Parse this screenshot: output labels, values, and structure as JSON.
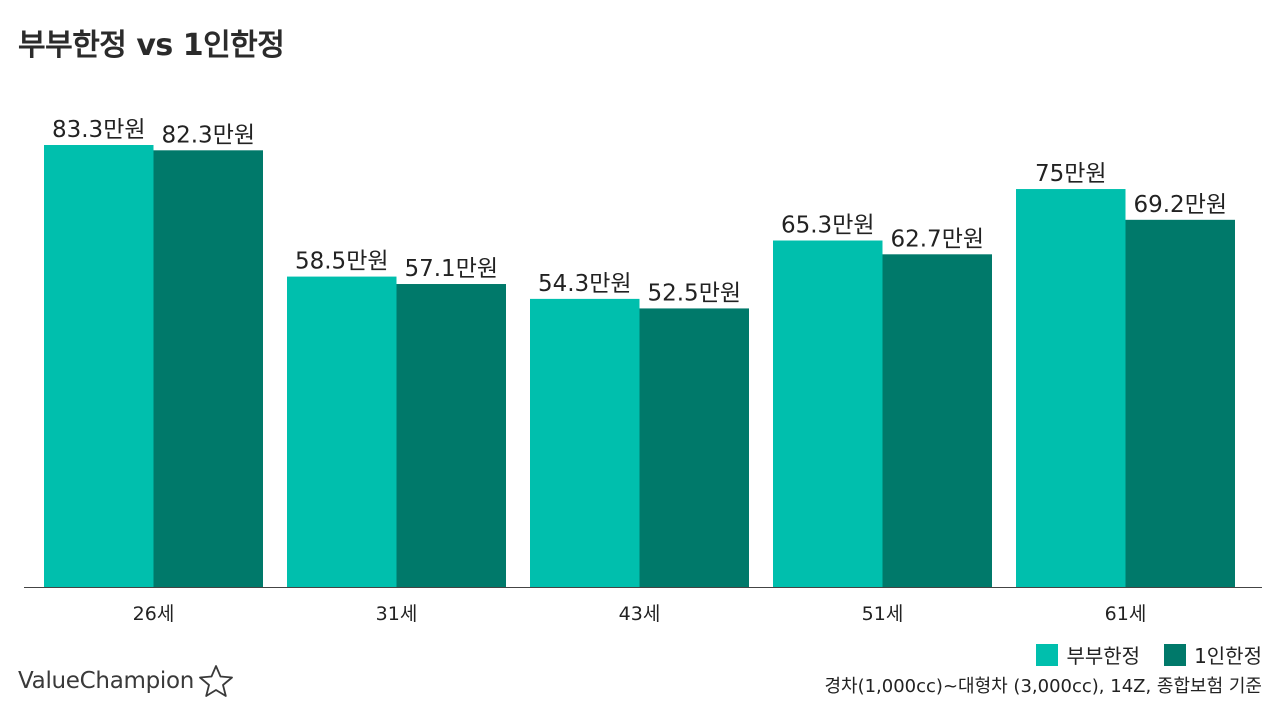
{
  "title": "부부한정 vs 1인한정",
  "chart_data": {
    "type": "bar",
    "categories": [
      "26세",
      "31세",
      "43세",
      "51세",
      "61세"
    ],
    "series": [
      {
        "name": "부부한정",
        "color": "#00bfad",
        "values": [
          83.3,
          58.5,
          54.3,
          65.3,
          75
        ],
        "labels": [
          "83.3만원",
          "58.5만원",
          "54.3만원",
          "65.3만원",
          "75만원"
        ]
      },
      {
        "name": "1인한정",
        "color": "#00796a",
        "values": [
          82.3,
          57.1,
          52.5,
          62.7,
          69.2
        ],
        "labels": [
          "82.3만원",
          "57.1만원",
          "52.5만원",
          "62.7만원",
          "69.2만원"
        ]
      }
    ],
    "ylim": [
      0,
      83.3
    ],
    "grid": false,
    "legend": "bottom-right"
  },
  "footnote": "경차(1,000cc)~대형차 (3,000cc), 14Z, 종합보험 기준",
  "logo": {
    "text": "ValueChampion",
    "icon": "star-outline-icon"
  }
}
